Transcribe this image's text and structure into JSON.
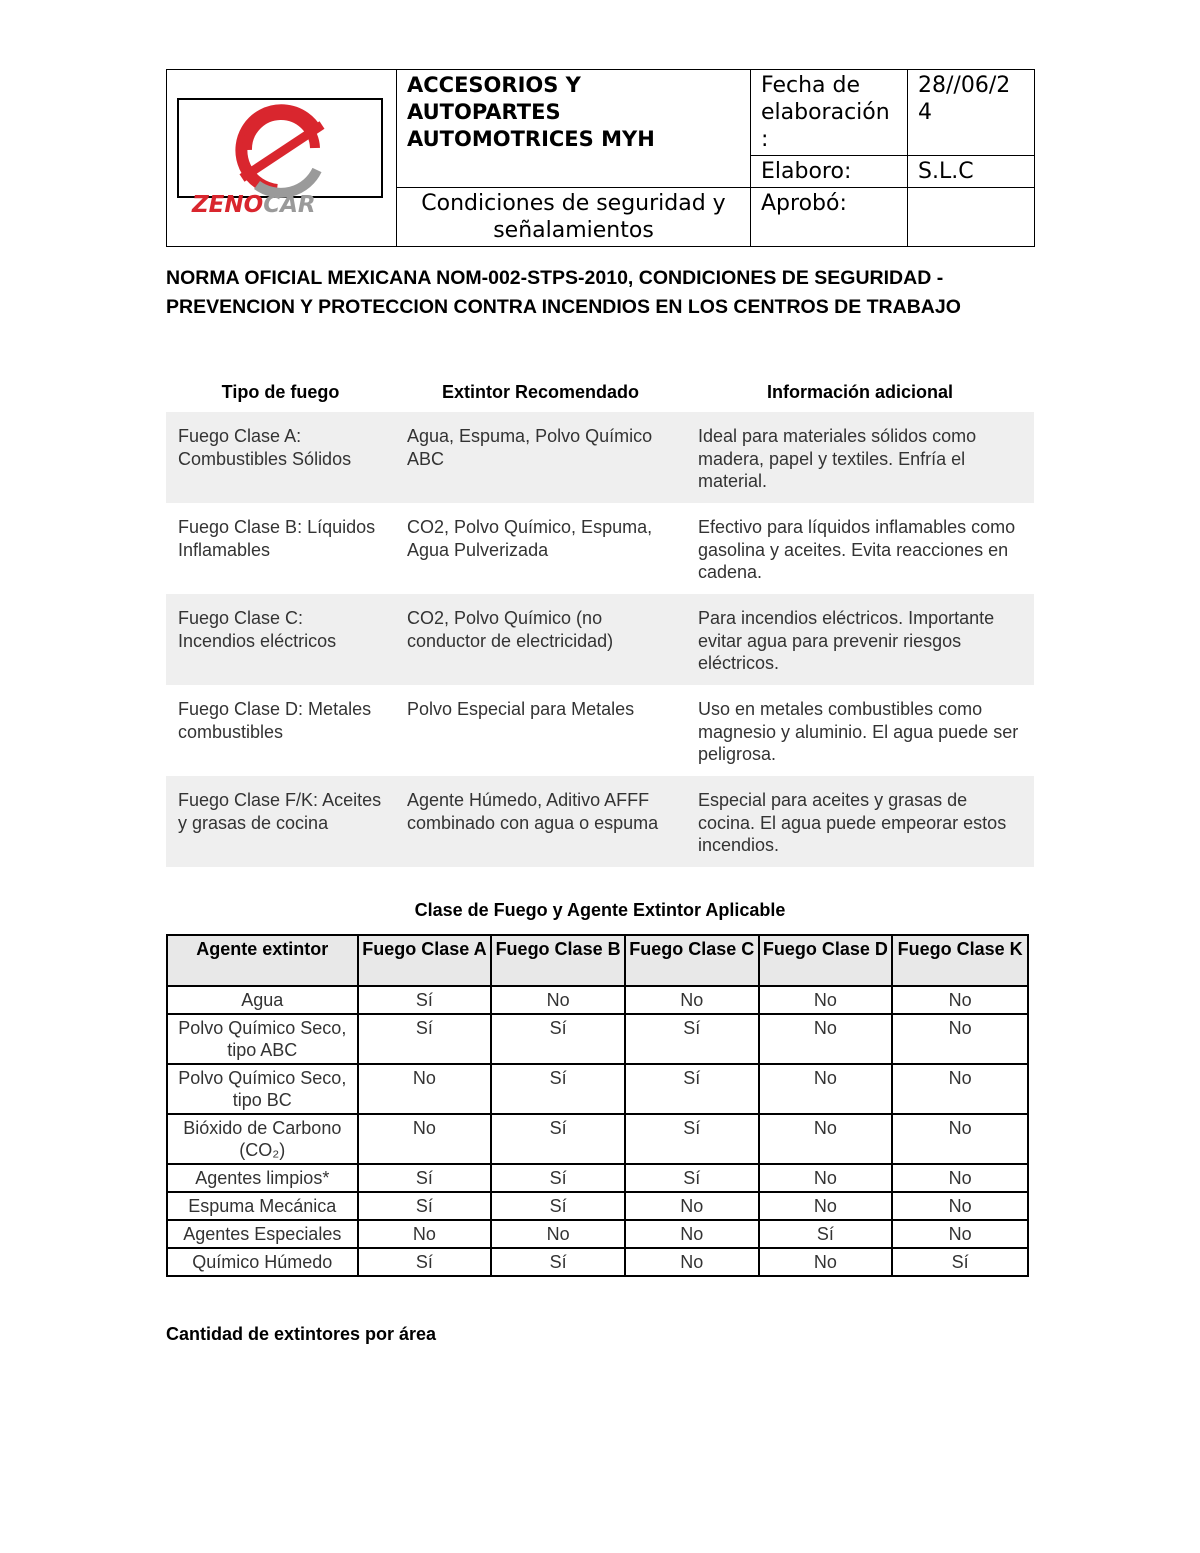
{
  "header": {
    "company": "ACCESORIOS Y AUTOPARTES AUTOMOTRICES MYH",
    "doc_title": "Condiciones de seguridad y señalamientos",
    "date_label": "Fecha de elaboración :",
    "date_value": "28//06/2 4",
    "elaboro_label": "Elaboro:",
    "elaboro_value": "S.L.C",
    "aprobo_label": "Aprobó:",
    "aprobo_value": "",
    "logo_text": "ZENOCAR",
    "logo_colors": {
      "red": "#d9262e",
      "gray": "#9a9a9a"
    }
  },
  "norma_title": "NORMA OFICIAL MEXICANA NOM-002-STPS-2010, CONDICIONES DE SEGURIDAD - PREVENCION Y PROTECCION CONTRA INCENDIOS EN LOS CENTROS DE TRABAJO",
  "fire_table": {
    "headers": [
      "Tipo de fuego",
      "Extintor Recomendado",
      "Información adicional"
    ],
    "rows": [
      [
        "Fuego Clase A: Combustibles Sólidos",
        "Agua, Espuma, Polvo Químico ABC",
        "Ideal para materiales sólidos como madera, papel y textiles. Enfría el material."
      ],
      [
        "Fuego Clase B: Líquidos Inflamables",
        "CO2, Polvo Químico, Espuma, Agua Pulverizada",
        "Efectivo para líquidos inflamables como gasolina y aceites. Evita reacciones en cadena."
      ],
      [
        "Fuego Clase C: Incendios eléctricos",
        "CO2, Polvo Químico (no conductor de electricidad)",
        "Para incendios eléctricos. Importante evitar agua para prevenir riesgos eléctricos."
      ],
      [
        "Fuego Clase D: Metales combustibles",
        "Polvo Especial para Metales",
        "Uso en metales combustibles como magnesio y aluminio. El agua puede ser peligrosa."
      ],
      [
        "Fuego Clase F/K: Aceites y grasas de cocina",
        "Agente Húmedo, Aditivo AFFF combinado con agua o espuma",
        "Especial para aceites y grasas de cocina. El agua puede empeorar estos incendios."
      ]
    ]
  },
  "class_table": {
    "caption": "Clase de Fuego y Agente Extintor Aplicable",
    "headers": [
      "Agente extintor",
      "Fuego Clase A",
      "Fuego Clase B",
      "Fuego Clase C",
      "Fuego Clase D",
      "Fuego Clase K"
    ],
    "rows": [
      [
        "Agua",
        "Sí",
        "No",
        "No",
        "No",
        "No"
      ],
      [
        "Polvo Químico Seco, tipo ABC",
        "Sí",
        "Sí",
        "Sí",
        "No",
        "No"
      ],
      [
        "Polvo Químico Seco, tipo BC",
        "No",
        "Sí",
        "Sí",
        "No",
        "No"
      ],
      [
        "Bióxido de Carbono (CO₂)",
        "No",
        "Sí",
        "Sí",
        "No",
        "No"
      ],
      [
        "Agentes limpios*",
        "Sí",
        "Sí",
        "Sí",
        "No",
        "No"
      ],
      [
        "Espuma Mecánica",
        "Sí",
        "Sí",
        "No",
        "No",
        "No"
      ],
      [
        "Agentes Especiales",
        "No",
        "No",
        "No",
        "Sí",
        "No"
      ],
      [
        "Químico Húmedo",
        "Sí",
        "Sí",
        "No",
        "No",
        "Sí"
      ]
    ]
  },
  "footer_heading": "Cantidad de extintores por área"
}
